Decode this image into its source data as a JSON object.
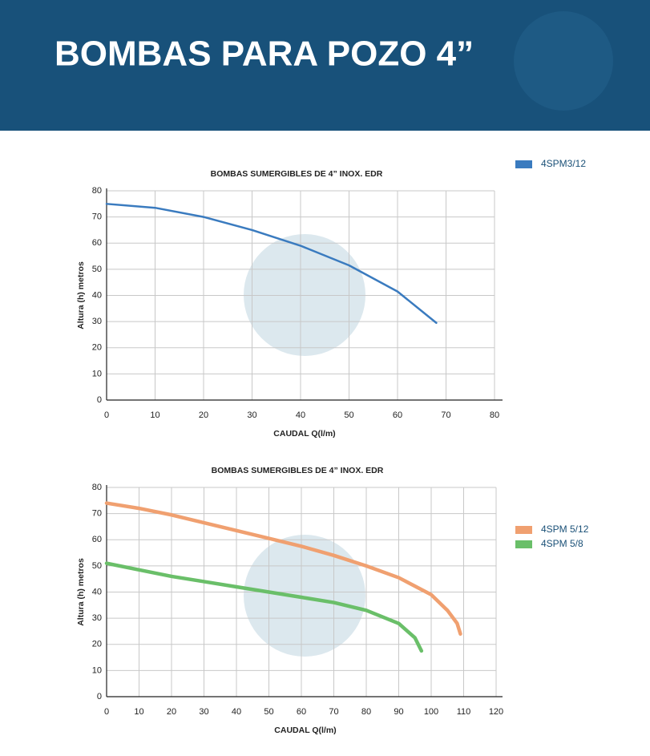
{
  "header": {
    "title": "BOMBAS PARA POZO 4”"
  },
  "chart_data": [
    {
      "type": "line",
      "title": "BOMBAS SUMERGIBLES DE 4” INOX. EDR",
      "x_label": "CAUDAL Q(l/m)",
      "y_label": "Altura (h) metros",
      "xlim": [
        0,
        80
      ],
      "xticks": [
        0,
        10,
        20,
        30,
        40,
        50,
        60,
        70,
        80
      ],
      "ylim": [
        0,
        80
      ],
      "yticks": [
        0,
        10,
        20,
        30,
        40,
        50,
        60,
        70,
        80
      ],
      "grid": true,
      "series": [
        {
          "name": "4SPM3/12",
          "color": "#3a7bbf",
          "x": [
            0,
            10,
            20,
            30,
            40,
            50,
            60,
            68
          ],
          "values": [
            75,
            73.5,
            70,
            65,
            59,
            51.5,
            41.5,
            29.5
          ]
        }
      ]
    },
    {
      "type": "line",
      "title": "BOMBAS SUMERGIBLES DE 4” INOX. EDR",
      "x_label": "CAUDAL Q(l/m)",
      "y_label": "Altura (h) metros",
      "xlim": [
        0,
        120
      ],
      "xticks": [
        0,
        10,
        20,
        30,
        40,
        50,
        60,
        70,
        80,
        90,
        100,
        110,
        120
      ],
      "ylim": [
        0,
        80
      ],
      "yticks": [
        0,
        10,
        20,
        30,
        40,
        50,
        60,
        70,
        80
      ],
      "grid": true,
      "series": [
        {
          "name": "4SPM 5/12",
          "color": "#f0a070",
          "x": [
            0,
            10,
            20,
            30,
            40,
            50,
            60,
            70,
            80,
            90,
            100,
            105,
            108,
            109
          ],
          "values": [
            74,
            72,
            69.5,
            66.5,
            63.5,
            60.5,
            57.5,
            54,
            50,
            45.5,
            39,
            33,
            28,
            24
          ]
        },
        {
          "name": "4SPM 5/8",
          "color": "#6abf69",
          "x": [
            0,
            10,
            20,
            30,
            40,
            50,
            60,
            70,
            80,
            90,
            95,
            97
          ],
          "values": [
            51,
            48.5,
            46,
            44,
            42,
            40,
            38,
            36,
            33,
            28,
            22.5,
            17.5
          ]
        }
      ]
    }
  ]
}
